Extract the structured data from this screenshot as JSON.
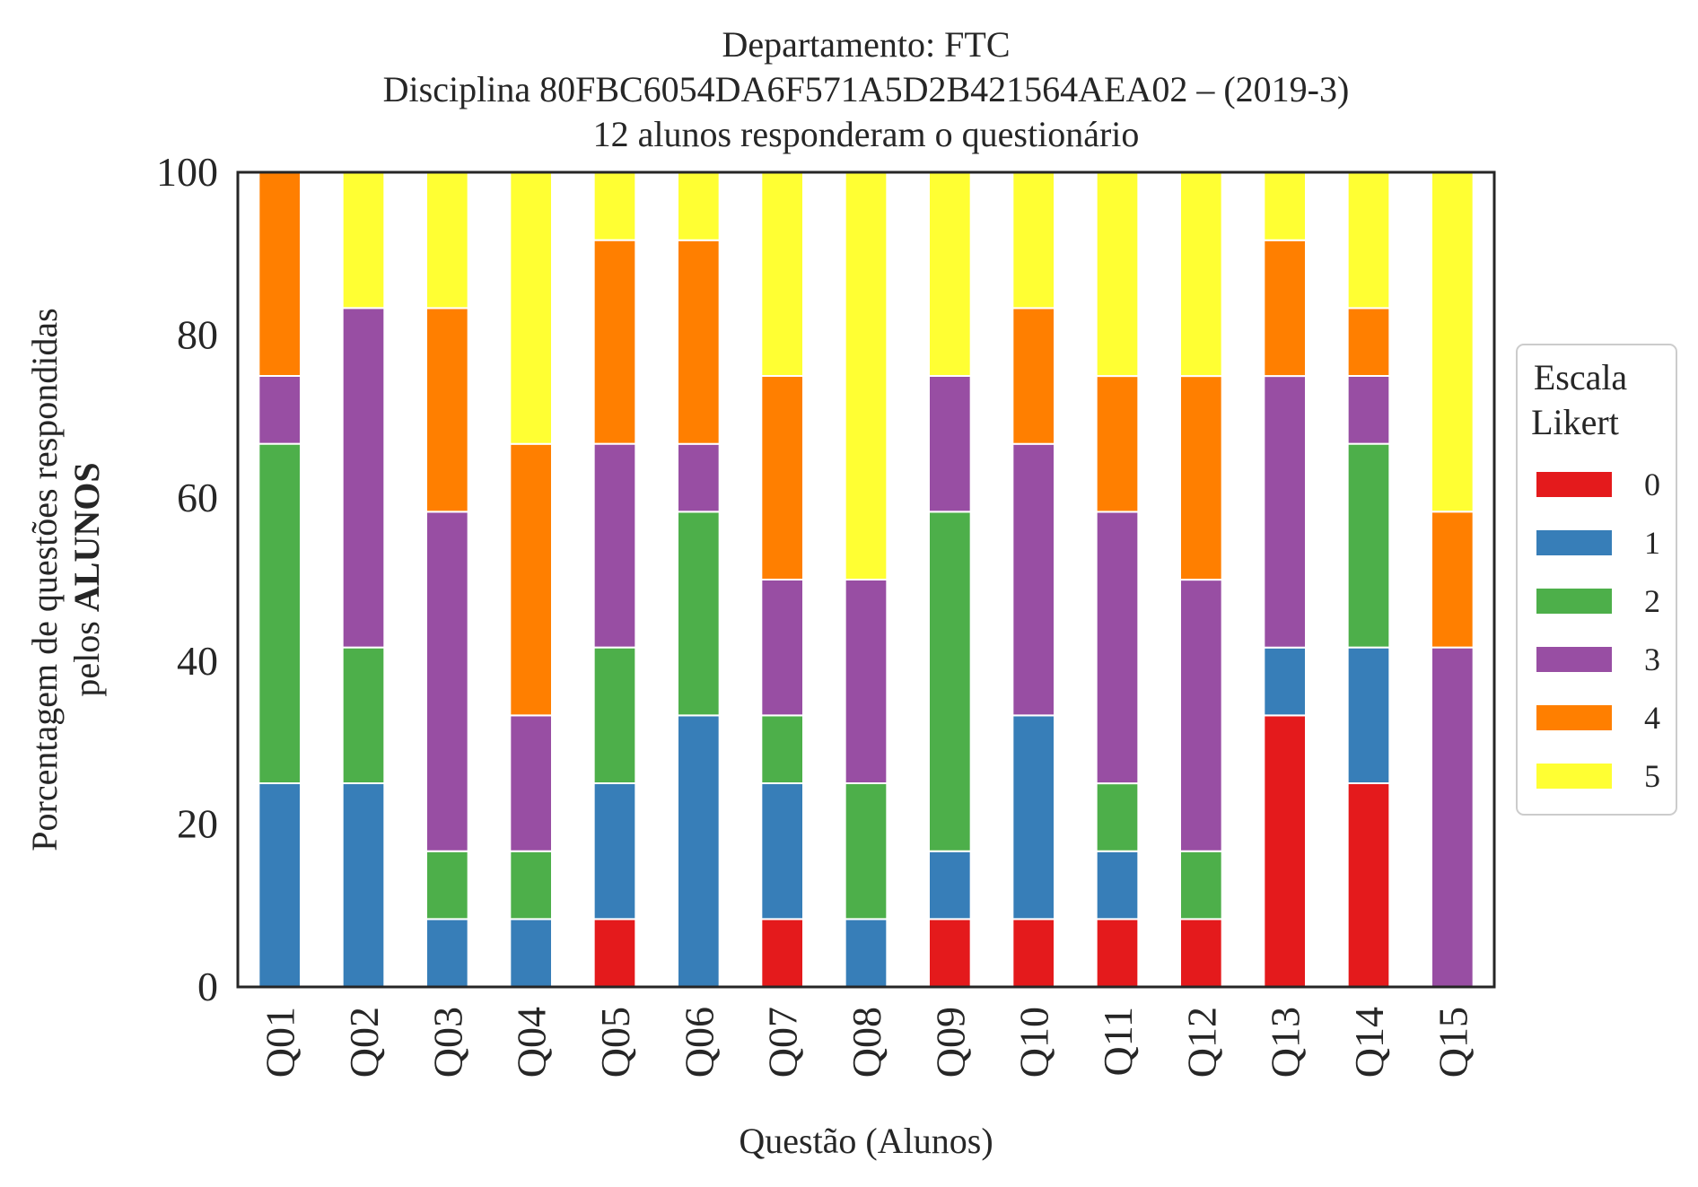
{
  "chart_data": {
    "type": "bar",
    "stacked": true,
    "title_lines": [
      "Departamento: FTC",
      "Disciplina 80FBC6054DA6F571A5D2B421564AEA02 – (2019-3)",
      "12 alunos responderam o questionário"
    ],
    "xlabel": "Questão (Alunos)",
    "ylabel_line1": "Porcentagem de questões respondidas",
    "ylabel_line2_prefix": "pelos ",
    "ylabel_line2_bold": "ALUNOS",
    "ylim": [
      0,
      100
    ],
    "yticks": [
      "0",
      "20",
      "40",
      "60",
      "80",
      "100"
    ],
    "grid": false,
    "categories": [
      "Q01",
      "Q02",
      "Q03",
      "Q04",
      "Q05",
      "Q06",
      "Q07",
      "Q08",
      "Q09",
      "Q10",
      "Q11",
      "Q12",
      "Q13",
      "Q14",
      "Q15"
    ],
    "legend": {
      "title_lines": [
        "Escala",
        "Likert"
      ],
      "placement": "right"
    },
    "series": [
      {
        "name": "0",
        "color": "#e41a1c",
        "values": [
          0,
          0,
          0,
          0,
          8.33,
          0,
          8.33,
          0,
          8.33,
          8.33,
          8.33,
          8.33,
          33.33,
          25,
          0
        ]
      },
      {
        "name": "1",
        "color": "#377eb8",
        "values": [
          25,
          25,
          8.33,
          8.33,
          16.67,
          33.33,
          16.67,
          8.33,
          8.33,
          25,
          8.33,
          0,
          8.33,
          16.67,
          0
        ]
      },
      {
        "name": "2",
        "color": "#4daf4a",
        "values": [
          41.67,
          16.67,
          8.33,
          8.33,
          16.67,
          25,
          8.33,
          16.67,
          41.67,
          0,
          8.33,
          8.33,
          0,
          25,
          0
        ]
      },
      {
        "name": "3",
        "color": "#984ea3",
        "values": [
          8.33,
          41.67,
          41.67,
          16.67,
          25,
          8.33,
          16.67,
          25,
          16.67,
          33.33,
          33.33,
          33.33,
          33.33,
          8.33,
          41.67
        ]
      },
      {
        "name": "4",
        "color": "#ff7f00",
        "values": [
          25,
          0,
          25,
          33.33,
          25,
          25,
          25,
          0,
          0,
          16.67,
          16.67,
          25,
          16.67,
          8.33,
          16.67
        ]
      },
      {
        "name": "5",
        "color": "#ffff33",
        "values": [
          0,
          16.67,
          16.67,
          33.33,
          8.33,
          8.33,
          25,
          50,
          25,
          16.67,
          25,
          25,
          8.33,
          16.67,
          41.67
        ]
      }
    ]
  }
}
